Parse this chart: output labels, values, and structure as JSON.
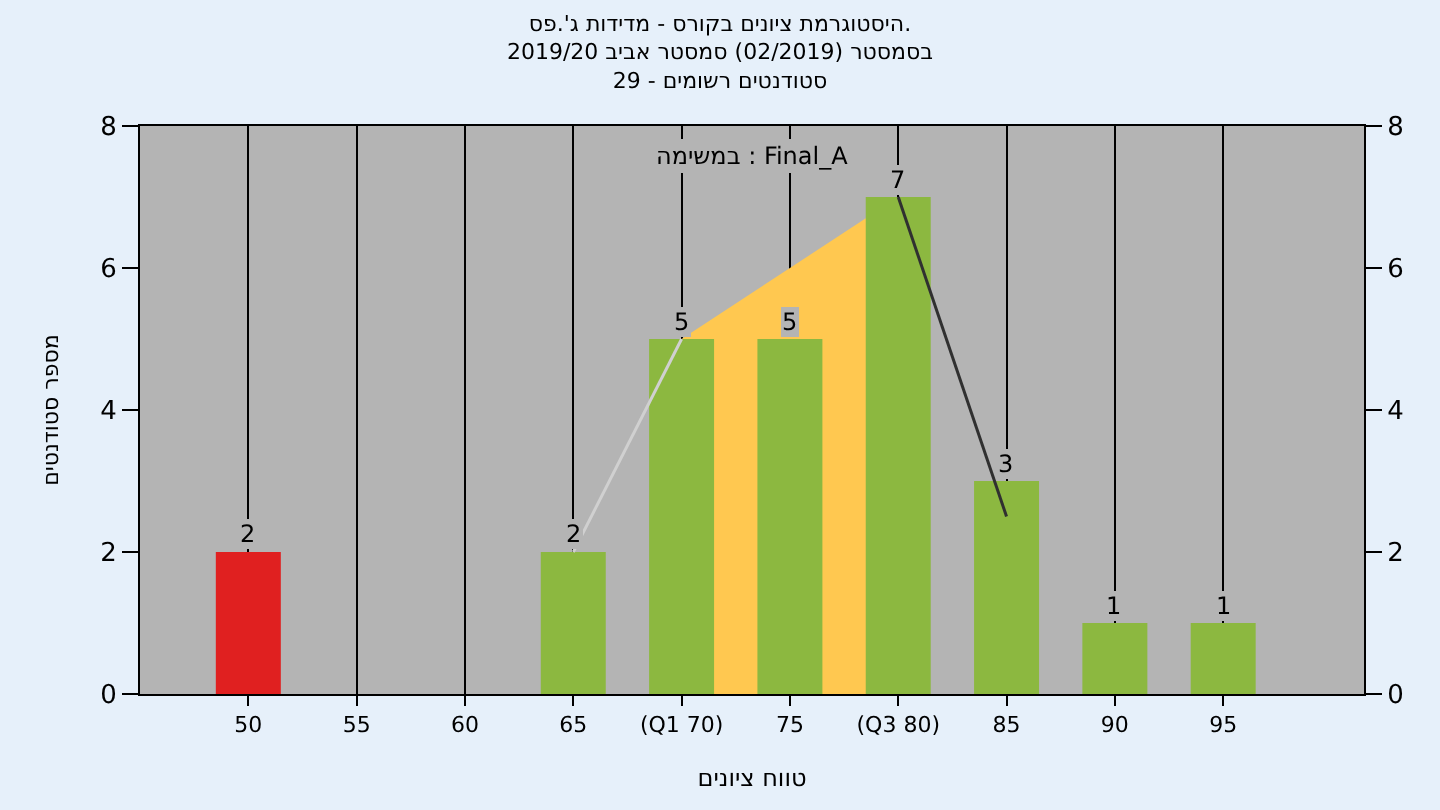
{
  "chart_data": {
    "type": "bar",
    "title": "היסטוגרמת ציונים בקורס - מדידות ג'.פס.",
    "subtitle": "בסמסטר (02/2019) סמסטר אביב 2019/20\nסטודנטים רשומים - 29",
    "xlabel": "טווח ציונים",
    "ylabel": "מספר סטודנטים",
    "annotations": [
      "במשימה : Final_A"
    ],
    "categories": [
      "50",
      "55",
      "60",
      "65",
      "(Q1 70)",
      "75",
      "(Q3 80)",
      "85",
      "90",
      "95"
    ],
    "series": [
      {
        "type": "line",
        "color": "#d0d0d0",
        "values": [
          null,
          null,
          null,
          2,
          5,
          null,
          null,
          null,
          null,
          null
        ]
      },
      {
        "type": "area",
        "color": "#ffc850",
        "values": [
          null,
          null,
          null,
          null,
          5,
          6,
          7,
          null,
          null,
          null
        ]
      },
      {
        "type": "line",
        "color": "#303030",
        "values": [
          null,
          null,
          null,
          null,
          null,
          null,
          7,
          2.5,
          null,
          null
        ]
      },
      {
        "colors": [
          "#e02020",
          "#8cb840",
          "#8cb840",
          "#8cb840",
          "#8cb840",
          "#8cb840",
          "#8cb840",
          "#8cb840",
          "#8cb840",
          "#8cb840"
        ],
        "values": [
          2,
          0,
          0,
          2,
          5,
          5,
          7,
          3,
          1,
          1
        ],
        "value_labels": [
          "2",
          null,
          null,
          "2",
          "5",
          "5",
          "7",
          "3",
          "1",
          "1"
        ]
      }
    ],
    "ylim": [
      0,
      8
    ],
    "yticks": [
      0,
      2,
      4,
      6,
      8
    ],
    "y2lim": [
      0,
      8
    ],
    "y2ticks": [
      0,
      2,
      4,
      6,
      8
    ],
    "grid": "x"
  }
}
